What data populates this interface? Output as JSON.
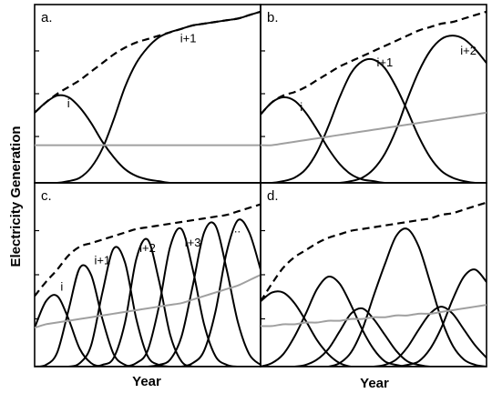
{
  "figure": {
    "ylabel": "Electricity Generation",
    "xlabel_left": "Year",
    "xlabel_right": "Year"
  },
  "chart_data": [
    {
      "type": "line",
      "panel_label": "a.",
      "xlim": [
        0,
        1
      ],
      "ylim": [
        0,
        1
      ],
      "grid": false,
      "x": [
        0,
        0.05,
        0.1,
        0.15,
        0.2,
        0.25,
        0.3,
        0.35,
        0.4,
        0.45,
        0.5,
        0.55,
        0.6,
        0.65,
        0.7,
        0.75,
        0.8,
        0.85,
        0.9,
        0.95,
        1
      ],
      "series": [
        {
          "values": [
            0.41,
            0.47,
            0.51,
            0.5,
            0.44,
            0.35,
            0.24,
            0.15,
            0.08,
            0.04,
            0.02,
            0.01,
            0.0,
            0.0,
            0.0,
            0.0,
            0.0,
            0.0,
            0.0,
            0.0,
            0.0
          ],
          "color": "#000000",
          "style": "solid"
        },
        {
          "values": [
            0.0,
            0.0,
            0.0,
            0.01,
            0.03,
            0.09,
            0.2,
            0.37,
            0.56,
            0.7,
            0.79,
            0.85,
            0.88,
            0.9,
            0.92,
            0.93,
            0.94,
            0.95,
            0.96,
            0.98,
            1.0
          ],
          "color": "#000000",
          "style": "solid"
        },
        {
          "values": [
            0.41,
            0.47,
            0.52,
            0.56,
            0.6,
            0.65,
            0.7,
            0.75,
            0.79,
            0.82,
            0.84,
            0.86,
            0.88,
            0.9,
            0.92,
            0.93,
            0.94,
            0.95,
            0.96,
            0.98,
            1.0
          ],
          "color": "#000000",
          "style": "dashed"
        },
        {
          "values": [
            0.22,
            0.22,
            0.22,
            0.22,
            0.22,
            0.22,
            0.22,
            0.22,
            0.22,
            0.22,
            0.22,
            0.22,
            0.22,
            0.22,
            0.22,
            0.22,
            0.22,
            0.22,
            0.22,
            0.22,
            0.22
          ],
          "color": "#a0a0a0",
          "style": "solid"
        }
      ],
      "annotations": [
        {
          "text": "i",
          "x": 0.15,
          "y": 0.44
        },
        {
          "text": "i+1",
          "x": 0.68,
          "y": 0.82
        }
      ]
    },
    {
      "type": "line",
      "panel_label": "b.",
      "xlim": [
        0,
        1
      ],
      "ylim": [
        0,
        1
      ],
      "grid": false,
      "x": [
        0,
        0.05,
        0.1,
        0.15,
        0.2,
        0.25,
        0.3,
        0.35,
        0.4,
        0.45,
        0.5,
        0.55,
        0.6,
        0.65,
        0.7,
        0.75,
        0.8,
        0.85,
        0.9,
        0.95,
        1
      ],
      "series": [
        {
          "values": [
            0.4,
            0.47,
            0.5,
            0.48,
            0.41,
            0.31,
            0.2,
            0.11,
            0.05,
            0.02,
            0.01,
            0.0,
            0.0,
            0.0,
            0.0,
            0.0,
            0.0,
            0.0,
            0.0,
            0.0,
            0.0
          ],
          "color": "#000000",
          "style": "solid"
        },
        {
          "values": [
            0.0,
            0.0,
            0.01,
            0.03,
            0.08,
            0.18,
            0.33,
            0.5,
            0.64,
            0.71,
            0.72,
            0.67,
            0.56,
            0.42,
            0.27,
            0.15,
            0.07,
            0.03,
            0.01,
            0.0,
            0.0
          ],
          "color": "#000000",
          "style": "solid"
        },
        {
          "values": [
            0.0,
            0.0,
            0.0,
            0.0,
            0.0,
            0.0,
            0.0,
            0.0,
            0.01,
            0.03,
            0.08,
            0.17,
            0.31,
            0.49,
            0.65,
            0.77,
            0.84,
            0.86,
            0.84,
            0.78,
            0.7
          ],
          "color": "#000000",
          "style": "solid"
        },
        {
          "values": [
            0.4,
            0.47,
            0.51,
            0.53,
            0.56,
            0.6,
            0.64,
            0.68,
            0.71,
            0.74,
            0.77,
            0.8,
            0.83,
            0.86,
            0.89,
            0.91,
            0.93,
            0.94,
            0.96,
            0.98,
            1.0
          ],
          "color": "#000000",
          "style": "dashed"
        },
        {
          "values": [
            0.22,
            0.22,
            0.23,
            0.24,
            0.25,
            0.26,
            0.27,
            0.28,
            0.29,
            0.3,
            0.31,
            0.32,
            0.33,
            0.34,
            0.35,
            0.36,
            0.37,
            0.38,
            0.39,
            0.4,
            0.41
          ],
          "color": "#a0a0a0",
          "style": "solid"
        }
      ],
      "annotations": [
        {
          "text": "i",
          "x": 0.18,
          "y": 0.42
        },
        {
          "text": "i+1",
          "x": 0.55,
          "y": 0.68
        },
        {
          "text": "i+2",
          "x": 0.92,
          "y": 0.75
        }
      ]
    },
    {
      "type": "line",
      "panel_label": "c.",
      "xlim": [
        0,
        1
      ],
      "ylim": [
        0,
        1
      ],
      "grid": false,
      "x": [
        0,
        0.05,
        0.1,
        0.15,
        0.2,
        0.25,
        0.3,
        0.35,
        0.4,
        0.45,
        0.5,
        0.55,
        0.6,
        0.65,
        0.7,
        0.75,
        0.8,
        0.85,
        0.9,
        0.95,
        1
      ],
      "series": [
        {
          "values": [
            0.22,
            0.37,
            0.4,
            0.27,
            0.1,
            0.02,
            0.0,
            0.0,
            0.0,
            0.0,
            0.0,
            0.0,
            0.0,
            0.0,
            0.0,
            0.0,
            0.0,
            0.0,
            0.0,
            0.0,
            0.0
          ],
          "color": "#000000",
          "style": "solid"
        },
        {
          "values": [
            0.0,
            0.01,
            0.08,
            0.32,
            0.56,
            0.52,
            0.27,
            0.07,
            0.01,
            0.0,
            0.0,
            0.0,
            0.0,
            0.0,
            0.0,
            0.0,
            0.0,
            0.0,
            0.0,
            0.0,
            0.0
          ],
          "color": "#000000",
          "style": "solid"
        },
        {
          "values": [
            0.0,
            0.0,
            0.0,
            0.0,
            0.02,
            0.12,
            0.42,
            0.67,
            0.59,
            0.27,
            0.06,
            0.01,
            0.0,
            0.0,
            0.0,
            0.0,
            0.0,
            0.0,
            0.0,
            0.0,
            0.0
          ],
          "color": "#000000",
          "style": "solid"
        },
        {
          "values": [
            0.0,
            0.0,
            0.0,
            0.0,
            0.0,
            0.0,
            0.01,
            0.05,
            0.25,
            0.61,
            0.72,
            0.49,
            0.18,
            0.03,
            0.0,
            0.0,
            0.0,
            0.0,
            0.0,
            0.0,
            0.0
          ],
          "color": "#000000",
          "style": "solid"
        },
        {
          "values": [
            0.0,
            0.0,
            0.0,
            0.0,
            0.0,
            0.0,
            0.0,
            0.0,
            0.0,
            0.02,
            0.09,
            0.34,
            0.68,
            0.78,
            0.55,
            0.24,
            0.06,
            0.01,
            0.0,
            0.0,
            0.0
          ],
          "color": "#000000",
          "style": "solid"
        },
        {
          "values": [
            0.0,
            0.0,
            0.0,
            0.0,
            0.0,
            0.0,
            0.0,
            0.0,
            0.0,
            0.0,
            0.0,
            0.01,
            0.04,
            0.17,
            0.46,
            0.76,
            0.8,
            0.55,
            0.25,
            0.07,
            0.01
          ],
          "color": "#000000",
          "style": "solid"
        },
        {
          "values": [
            0.0,
            0.0,
            0.0,
            0.0,
            0.0,
            0.0,
            0.0,
            0.0,
            0.0,
            0.0,
            0.0,
            0.0,
            0.0,
            0.0,
            0.02,
            0.09,
            0.31,
            0.65,
            0.83,
            0.76,
            0.55
          ],
          "color": "#000000",
          "style": "solid"
        },
        {
          "values": [
            0.4,
            0.48,
            0.55,
            0.63,
            0.68,
            0.7,
            0.72,
            0.74,
            0.76,
            0.78,
            0.79,
            0.8,
            0.81,
            0.82,
            0.83,
            0.84,
            0.85,
            0.86,
            0.88,
            0.9,
            0.92
          ],
          "color": "#000000",
          "style": "dashed"
        },
        {
          "values": [
            0.22,
            0.24,
            0.25,
            0.26,
            0.27,
            0.28,
            0.29,
            0.3,
            0.31,
            0.32,
            0.33,
            0.34,
            0.35,
            0.36,
            0.38,
            0.4,
            0.42,
            0.44,
            0.46,
            0.49,
            0.52
          ],
          "color": "#a0a0a0",
          "style": "solid"
        }
      ],
      "annotations": [
        {
          "text": "i",
          "x": 0.12,
          "y": 0.43
        },
        {
          "text": "i+1",
          "x": 0.3,
          "y": 0.58
        },
        {
          "text": "i+2",
          "x": 0.5,
          "y": 0.65
        },
        {
          "text": "i+3",
          "x": 0.7,
          "y": 0.68
        },
        {
          "text": "...",
          "x": 0.89,
          "y": 0.76
        }
      ]
    },
    {
      "type": "line",
      "panel_label": "d.",
      "xlim": [
        0,
        1
      ],
      "ylim": [
        0,
        1
      ],
      "grid": false,
      "x": [
        0,
        0.05,
        0.1,
        0.15,
        0.2,
        0.25,
        0.3,
        0.35,
        0.4,
        0.45,
        0.5,
        0.55,
        0.6,
        0.65,
        0.7,
        0.75,
        0.8,
        0.85,
        0.9,
        0.95,
        1
      ],
      "series": [
        {
          "values": [
            0.37,
            0.42,
            0.42,
            0.36,
            0.26,
            0.15,
            0.07,
            0.02,
            0.0,
            0.0,
            0.0,
            0.0,
            0.0,
            0.0,
            0.0,
            0.0,
            0.0,
            0.0,
            0.0,
            0.0,
            0.0
          ],
          "color": "#000000",
          "style": "solid"
        },
        {
          "values": [
            0.0,
            0.02,
            0.07,
            0.17,
            0.3,
            0.44,
            0.51,
            0.47,
            0.35,
            0.21,
            0.1,
            0.03,
            0.01,
            0.0,
            0.0,
            0.0,
            0.0,
            0.0,
            0.0,
            0.0,
            0.0
          ],
          "color": "#000000",
          "style": "solid"
        },
        {
          "values": [
            0.0,
            0.0,
            0.0,
            0.0,
            0.01,
            0.04,
            0.1,
            0.2,
            0.3,
            0.33,
            0.27,
            0.18,
            0.09,
            0.03,
            0.01,
            0.0,
            0.0,
            0.0,
            0.0,
            0.0,
            0.0
          ],
          "color": "#000000",
          "style": "solid"
        },
        {
          "values": [
            0.0,
            0.0,
            0.0,
            0.0,
            0.0,
            0.0,
            0.0,
            0.02,
            0.08,
            0.21,
            0.4,
            0.58,
            0.74,
            0.78,
            0.68,
            0.48,
            0.27,
            0.12,
            0.04,
            0.01,
            0.0
          ],
          "color": "#000000",
          "style": "solid"
        },
        {
          "values": [
            0.0,
            0.0,
            0.0,
            0.0,
            0.0,
            0.0,
            0.0,
            0.0,
            0.0,
            0.0,
            0.0,
            0.01,
            0.04,
            0.11,
            0.21,
            0.3,
            0.34,
            0.3,
            0.21,
            0.12,
            0.05
          ],
          "color": "#000000",
          "style": "solid"
        },
        {
          "values": [
            0.0,
            0.0,
            0.0,
            0.0,
            0.0,
            0.0,
            0.0,
            0.0,
            0.0,
            0.0,
            0.0,
            0.0,
            0.0,
            0.01,
            0.03,
            0.1,
            0.22,
            0.38,
            0.51,
            0.55,
            0.48
          ],
          "color": "#000000",
          "style": "solid"
        },
        {
          "values": [
            0.37,
            0.47,
            0.56,
            0.62,
            0.66,
            0.7,
            0.73,
            0.75,
            0.77,
            0.78,
            0.79,
            0.8,
            0.81,
            0.82,
            0.83,
            0.84,
            0.86,
            0.87,
            0.89,
            0.91,
            0.93
          ],
          "color": "#000000",
          "style": "dashed"
        },
        {
          "values": [
            0.23,
            0.23,
            0.24,
            0.24,
            0.25,
            0.25,
            0.26,
            0.26,
            0.27,
            0.27,
            0.28,
            0.28,
            0.29,
            0.29,
            0.3,
            0.3,
            0.31,
            0.32,
            0.33,
            0.34,
            0.35
          ],
          "color": "#a0a0a0",
          "style": "solid"
        }
      ],
      "annotations": []
    }
  ]
}
